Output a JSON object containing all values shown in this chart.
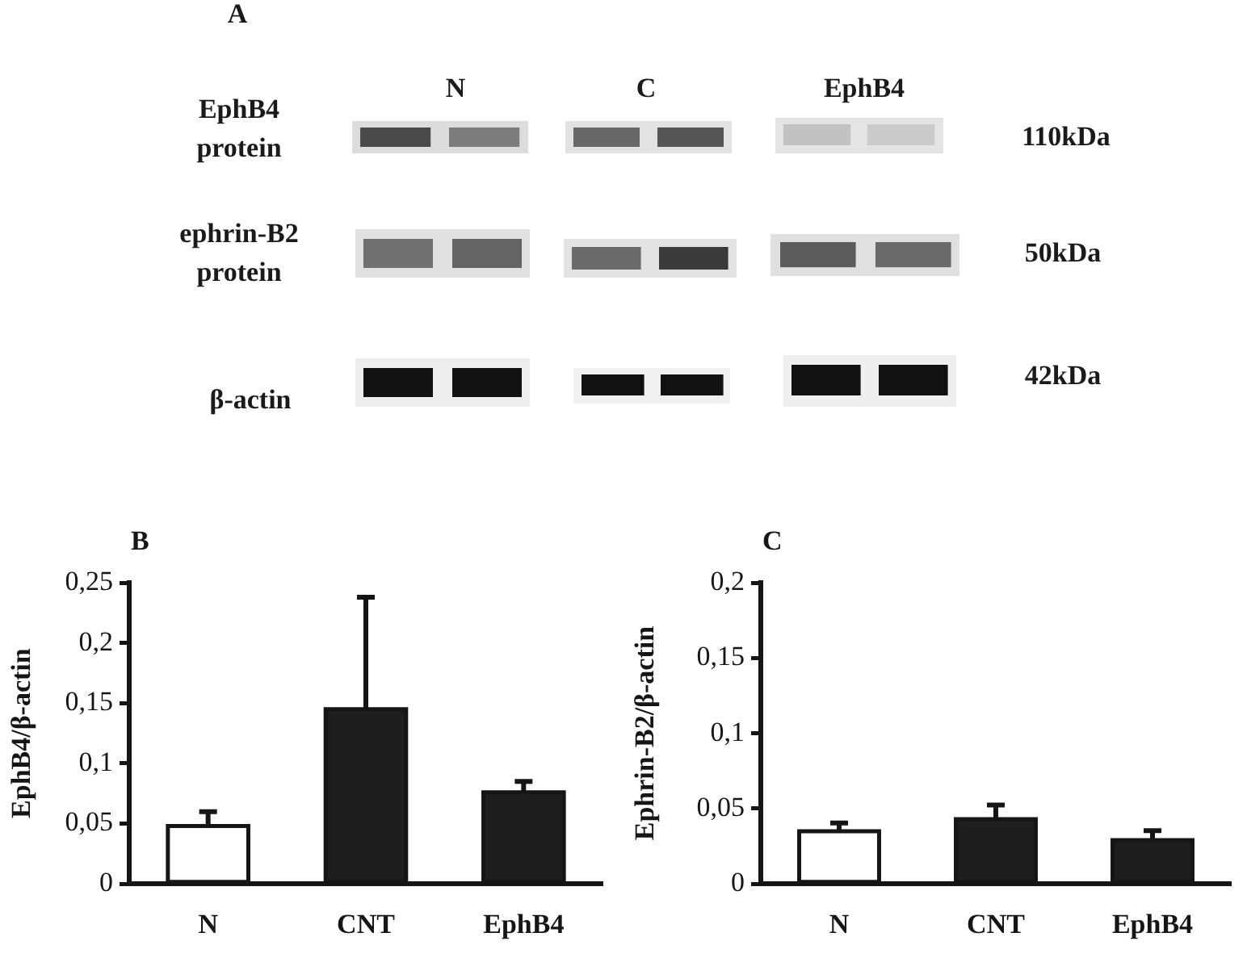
{
  "chart_data": [
    {
      "type": "other",
      "title": "A",
      "annotations": [
        "N",
        "C",
        "EphB4",
        "EphB4 protein",
        "ephrin-B2 protein",
        "β-actin",
        "110kDa",
        "50kDa",
        "42kDa"
      ]
    },
    {
      "type": "bar",
      "title": "B",
      "ylabel": "EphB4/β-actin",
      "categories": [
        "N",
        "CNT",
        "EphB4"
      ],
      "values": [
        0.048,
        0.145,
        0.076
      ],
      "colors": [
        "#ffffff",
        "#1e1e1e",
        "#1e1e1e"
      ],
      "errors": [
        [
          0.048,
          0.062
        ],
        [
          0.145,
          0.24
        ],
        [
          0.076,
          0.087
        ]
      ],
      "ylim": [
        0,
        0.25
      ],
      "yticks": [
        0,
        {
          "value": 0.05,
          "label": "0,05"
        },
        {
          "value": 0.1,
          "label": "0,1"
        },
        {
          "value": 0.15,
          "label": "0,15"
        },
        {
          "value": 0.2,
          "label": "0,2"
        },
        {
          "value": 0.25,
          "label": "0,25"
        }
      ]
    },
    {
      "type": "bar",
      "title": "C",
      "ylabel": "Ephrin-B2/β-actin",
      "categories": [
        "N",
        "CNT",
        "EphB4"
      ],
      "values": [
        0.035,
        0.043,
        0.029
      ],
      "colors": [
        "#ffffff",
        "#1e1e1e",
        "#1e1e1e"
      ],
      "errors": [
        [
          0.035,
          0.042
        ],
        [
          0.043,
          0.054
        ],
        [
          0.029,
          0.037
        ]
      ],
      "ylim": [
        0,
        0.2
      ],
      "yticks": [
        0,
        {
          "value": 0.05,
          "label": "0,05"
        },
        {
          "value": 0.1,
          "label": "0,1"
        },
        {
          "value": 0.15,
          "label": "0,15"
        },
        {
          "value": 0.2,
          "label": "0,2"
        }
      ]
    }
  ]
}
